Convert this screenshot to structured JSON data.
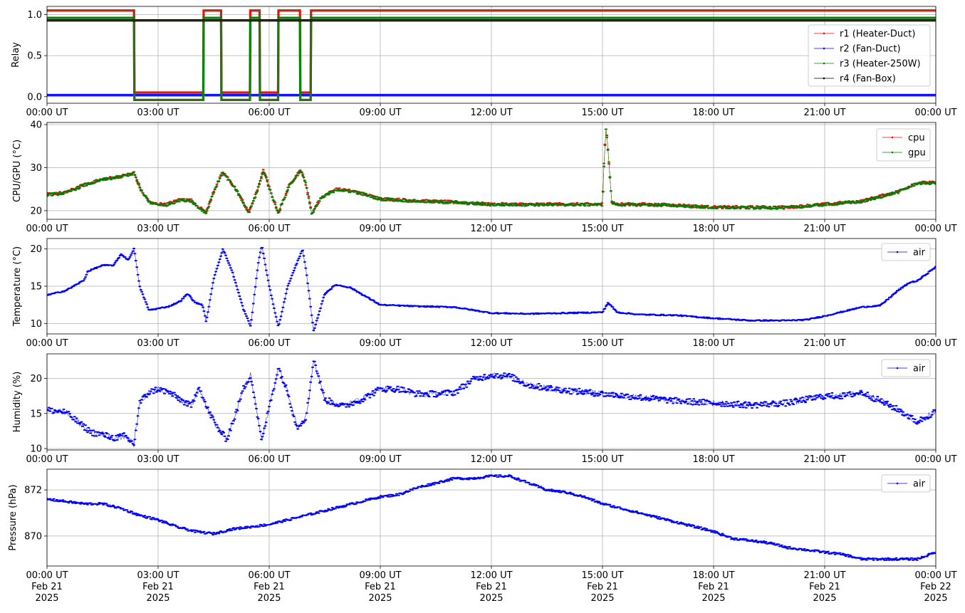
{
  "chart_data": [
    {
      "type": "line",
      "ylabel": "Relay",
      "ylim": [
        -0.08,
        1.1
      ],
      "yticks": [
        0.0,
        0.5,
        1.0
      ],
      "ytick_labels": [
        "0.0",
        "0.5",
        "1.0"
      ],
      "xlim_hours": [
        0,
        24
      ],
      "xtick_labels": [
        "00:00 UT",
        "03:00 UT",
        "06:00 UT",
        "09:00 UT",
        "12:00 UT",
        "15:00 UT",
        "18:00 UT",
        "21:00 UT",
        "00:00 UT"
      ],
      "grid": true,
      "legend": "right",
      "series": [
        {
          "name": "r1 (Heater-Duct)",
          "color": "#ff0000",
          "x_hours": [
            0,
            2.35,
            2.36,
            4.22,
            4.23,
            4.7,
            4.71,
            5.48,
            5.49,
            5.74,
            5.75,
            6.24,
            6.25,
            6.83,
            6.84,
            7.12,
            7.13,
            24
          ],
          "y": [
            1.05,
            1.05,
            0.05,
            0.05,
            1.05,
            1.05,
            0.05,
            0.05,
            1.05,
            1.05,
            0.05,
            0.05,
            1.05,
            1.05,
            0.05,
            0.05,
            1.05,
            1.05
          ]
        },
        {
          "name": "r2 (Fan-Duct)",
          "color": "#0000ff",
          "x_hours": [
            0,
            24
          ],
          "y": [
            0.02,
            0.02
          ]
        },
        {
          "name": "r3 (Heater-250W)",
          "color": "#008000",
          "x_hours": [
            0,
            2.35,
            2.36,
            4.22,
            4.23,
            4.7,
            4.71,
            5.48,
            5.49,
            5.74,
            5.75,
            6.24,
            6.25,
            6.83,
            6.84,
            7.12,
            7.13,
            24
          ],
          "y": [
            0.96,
            0.96,
            -0.04,
            -0.04,
            0.96,
            0.96,
            -0.04,
            -0.04,
            0.96,
            0.96,
            -0.04,
            -0.04,
            0.96,
            0.96,
            -0.04,
            -0.04,
            0.96,
            0.96
          ]
        },
        {
          "name": "r4 (Fan-Box)",
          "color": "#000000",
          "x_hours": [
            0,
            24
          ],
          "y": [
            0.93,
            0.93
          ]
        }
      ]
    },
    {
      "type": "line",
      "ylabel": "CPU/GPU (°C)",
      "ylim": [
        18,
        40.5
      ],
      "yticks": [
        20,
        30,
        40
      ],
      "ytick_labels": [
        "20",
        "30",
        "40"
      ],
      "xlim_hours": [
        0,
        24
      ],
      "xtick_labels": [
        "00:00 UT",
        "03:00 UT",
        "06:00 UT",
        "09:00 UT",
        "12:00 UT",
        "15:00 UT",
        "18:00 UT",
        "21:00 UT",
        "00:00 UT"
      ],
      "grid": true,
      "legend": "top-right",
      "series": [
        {
          "name": "cpu",
          "color": "#ff0000",
          "x_hours": [
            0,
            0.5,
            1.0,
            1.5,
            2.0,
            2.35,
            2.55,
            2.8,
            3.2,
            3.6,
            3.9,
            4.1,
            4.3,
            4.5,
            4.75,
            5.1,
            5.45,
            5.65,
            5.85,
            6.05,
            6.25,
            6.55,
            6.85,
            7.0,
            7.15,
            7.4,
            7.8,
            8.3,
            9.0,
            10.0,
            11.0,
            12.0,
            13.0,
            14.0,
            15.0,
            15.05,
            15.1,
            15.15,
            15.25,
            15.4,
            16.0,
            17.0,
            18.0,
            19.0,
            20.0,
            21.0,
            22.0,
            23.0,
            23.5,
            24.0
          ],
          "y": [
            23.8,
            24.2,
            26.0,
            27.3,
            28.0,
            28.8,
            24.5,
            21.8,
            21.4,
            22.6,
            22.4,
            20.8,
            19.6,
            24.5,
            29.0,
            25.0,
            19.6,
            24.0,
            29.5,
            24.0,
            19.6,
            26.0,
            29.5,
            26.0,
            19.3,
            23.0,
            25.0,
            24.5,
            22.8,
            22.3,
            22.0,
            21.5,
            21.5,
            21.5,
            21.5,
            33.0,
            39.6,
            34.0,
            22.0,
            21.5,
            21.5,
            21.3,
            20.8,
            20.8,
            20.8,
            21.5,
            22.2,
            24.5,
            26.5,
            26.5
          ]
        },
        {
          "name": "gpu",
          "color": "#008000",
          "x_hours": [
            0,
            0.5,
            1.0,
            1.5,
            2.0,
            2.35,
            2.55,
            2.8,
            3.2,
            3.6,
            3.9,
            4.1,
            4.3,
            4.5,
            4.75,
            5.1,
            5.45,
            5.65,
            5.85,
            6.05,
            6.25,
            6.55,
            6.85,
            7.0,
            7.15,
            7.4,
            7.8,
            8.3,
            9.0,
            10.0,
            11.0,
            12.0,
            13.0,
            14.0,
            15.0,
            15.05,
            15.1,
            15.15,
            15.25,
            15.4,
            16.0,
            17.0,
            18.0,
            19.0,
            20.0,
            21.0,
            22.0,
            23.0,
            23.5,
            24.0
          ],
          "y": [
            23.7,
            24.1,
            25.9,
            27.2,
            27.9,
            28.7,
            24.4,
            21.7,
            21.3,
            22.5,
            22.3,
            20.7,
            19.5,
            24.4,
            28.9,
            24.9,
            19.5,
            23.9,
            29.4,
            23.9,
            19.5,
            25.9,
            29.4,
            25.9,
            19.2,
            22.9,
            24.9,
            24.4,
            22.7,
            22.2,
            21.9,
            21.4,
            21.4,
            21.4,
            21.4,
            32.9,
            39.5,
            33.9,
            21.9,
            21.4,
            21.4,
            21.2,
            20.7,
            20.7,
            20.7,
            21.4,
            22.1,
            24.4,
            26.4,
            26.4
          ]
        }
      ]
    },
    {
      "type": "line",
      "ylabel": "Temperature (°C)",
      "ylim": [
        8.6,
        21.4
      ],
      "yticks": [
        10,
        15,
        20
      ],
      "ytick_labels": [
        "10",
        "15",
        "20"
      ],
      "xlim_hours": [
        0,
        24
      ],
      "xtick_labels": [
        "00:00 UT",
        "03:00 UT",
        "06:00 UT",
        "09:00 UT",
        "12:00 UT",
        "15:00 UT",
        "18:00 UT",
        "21:00 UT",
        "00:00 UT"
      ],
      "grid": true,
      "legend": "top-right",
      "series": [
        {
          "name": "air",
          "color": "#0000ff",
          "x_hours": [
            0,
            0.5,
            1.0,
            1.1,
            1.5,
            1.8,
            2.0,
            2.2,
            2.35,
            2.5,
            2.75,
            3.0,
            3.3,
            3.6,
            3.8,
            4.0,
            4.2,
            4.3,
            4.5,
            4.75,
            5.0,
            5.3,
            5.5,
            5.7,
            5.8,
            6.0,
            6.25,
            6.5,
            6.9,
            7.0,
            7.2,
            7.5,
            7.8,
            8.2,
            9.0,
            10.0,
            11.0,
            12.0,
            13.0,
            14.0,
            15.0,
            15.15,
            15.4,
            16.0,
            17.0,
            18.0,
            19.0,
            20.0,
            20.5,
            21.0,
            21.5,
            22.0,
            22.5,
            23.0,
            23.3,
            23.5,
            24.0
          ],
          "y": [
            13.8,
            14.4,
            15.8,
            17.0,
            17.8,
            17.8,
            19.3,
            18.5,
            20.1,
            15.0,
            11.8,
            12.0,
            12.3,
            13.0,
            14.0,
            12.8,
            12.5,
            10.2,
            16.0,
            20.0,
            17.0,
            12.0,
            9.6,
            18.0,
            20.5,
            15.0,
            9.5,
            15.0,
            20.0,
            17.0,
            9.0,
            14.0,
            15.2,
            14.8,
            12.5,
            12.3,
            12.2,
            11.4,
            11.3,
            11.4,
            11.5,
            12.8,
            11.5,
            11.2,
            11.1,
            10.7,
            10.4,
            10.4,
            10.5,
            11.0,
            11.6,
            12.2,
            12.4,
            14.5,
            15.5,
            15.7,
            17.6
          ]
        }
      ]
    },
    {
      "type": "scatter",
      "ylabel": "Humidity (%)",
      "ylim": [
        9.8,
        23.5
      ],
      "yticks": [
        10,
        15,
        20
      ],
      "ytick_labels": [
        "10",
        "15",
        "20"
      ],
      "xlim_hours": [
        0,
        24
      ],
      "xtick_labels": [
        "00:00 UT",
        "03:00 UT",
        "06:00 UT",
        "09:00 UT",
        "12:00 UT",
        "15:00 UT",
        "18:00 UT",
        "21:00 UT",
        "00:00 UT"
      ],
      "grid": true,
      "legend": "top-right",
      "series": [
        {
          "name": "air",
          "color": "#0000ff",
          "x_hours": [
            0,
            0.5,
            0.9,
            1.2,
            1.5,
            1.8,
            2.1,
            2.35,
            2.5,
            2.75,
            3.0,
            3.3,
            3.6,
            3.9,
            4.1,
            4.3,
            4.6,
            4.85,
            5.1,
            5.3,
            5.5,
            5.8,
            6.0,
            6.25,
            6.5,
            6.75,
            7.0,
            7.2,
            7.5,
            8.0,
            8.5,
            9.0,
            9.5,
            10.0,
            10.5,
            11.0,
            11.5,
            12.0,
            12.5,
            13.0,
            14.0,
            15.0,
            16.0,
            17.0,
            18.0,
            19.0,
            20.0,
            21.0,
            21.5,
            22.0,
            22.5,
            23.0,
            23.5,
            24.0
          ],
          "y": [
            15.5,
            15.2,
            13.5,
            12.3,
            12.0,
            11.5,
            11.8,
            10.6,
            16.5,
            18.0,
            18.5,
            18.0,
            17.0,
            16.0,
            19.0,
            16.0,
            13.0,
            11.3,
            15.0,
            18.5,
            20.5,
            11.0,
            16.0,
            21.5,
            18.0,
            13.0,
            14.5,
            22.8,
            17.0,
            16.0,
            17.0,
            18.5,
            18.5,
            17.8,
            17.8,
            18.0,
            19.8,
            20.5,
            20.3,
            19.0,
            18.3,
            17.8,
            17.3,
            16.8,
            16.5,
            16.2,
            16.5,
            17.5,
            17.5,
            18.0,
            16.8,
            15.5,
            13.8,
            15.3
          ]
        }
      ]
    },
    {
      "type": "scatter",
      "ylabel": "Pressure (hPa)",
      "ylim": [
        868.7,
        872.9
      ],
      "yticks": [
        870,
        872
      ],
      "ytick_labels": [
        "870",
        "872"
      ],
      "xlim_hours": [
        0,
        24
      ],
      "xtick_labels": [
        "00:00 UT\nFeb 21\n2025",
        "03:00 UT\nFeb 21\n2025",
        "06:00 UT\nFeb 21\n2025",
        "09:00 UT\nFeb 21\n2025",
        "12:00 UT\nFeb 21\n2025",
        "15:00 UT\nFeb 21\n2025",
        "18:00 UT\nFeb 21\n2025",
        "21:00 UT\nFeb 21\n2025",
        "00:00 UT\nFeb 22\n2025"
      ],
      "grid": true,
      "legend": "top-right",
      "series": [
        {
          "name": "air",
          "color": "#0000ff",
          "x_hours": [
            0,
            1.0,
            1.5,
            2.0,
            2.5,
            3.0,
            3.5,
            4.0,
            4.5,
            5.0,
            5.5,
            6.0,
            6.5,
            7.0,
            7.5,
            8.0,
            8.5,
            9.0,
            9.5,
            10.0,
            10.5,
            11.0,
            11.5,
            12.0,
            12.5,
            13.0,
            13.5,
            14.0,
            14.5,
            15.0,
            15.5,
            16.0,
            16.5,
            17.0,
            17.5,
            18.0,
            18.5,
            19.0,
            19.5,
            20.0,
            20.5,
            21.0,
            21.5,
            22.0,
            22.5,
            23.0,
            23.5,
            24.0
          ],
          "y": [
            871.6,
            871.4,
            871.4,
            871.2,
            870.9,
            870.7,
            870.4,
            870.2,
            870.1,
            870.3,
            870.4,
            870.5,
            870.7,
            870.9,
            871.1,
            871.3,
            871.5,
            871.7,
            871.8,
            872.1,
            872.3,
            872.5,
            872.5,
            872.6,
            872.6,
            872.3,
            872.0,
            871.9,
            871.7,
            871.4,
            871.2,
            871.0,
            870.8,
            870.6,
            870.4,
            870.2,
            869.9,
            869.8,
            869.7,
            869.5,
            869.4,
            869.3,
            869.2,
            869.0,
            869.0,
            869.0,
            869.0,
            869.3
          ]
        }
      ]
    }
  ]
}
